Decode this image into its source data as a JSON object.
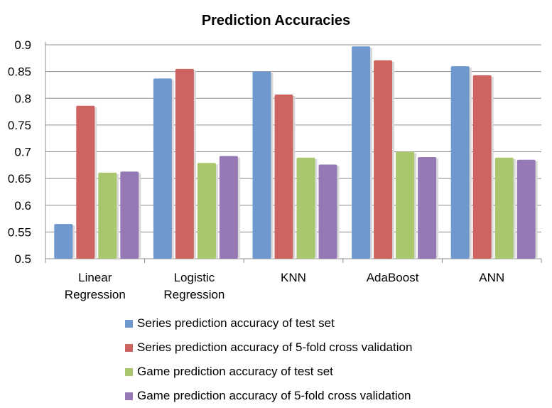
{
  "chart_data": {
    "type": "bar",
    "title": "Prediction Accuracies",
    "categories": [
      [
        "Linear",
        "Regression"
      ],
      [
        "Logistic",
        "Regression"
      ],
      [
        "KNN"
      ],
      [
        "AdaBoost"
      ],
      [
        "ANN"
      ]
    ],
    "yticks": [
      "0.5",
      "0.55",
      "0.6",
      "0.65",
      "0.7",
      "0.75",
      "0.8",
      "0.85",
      "0.9"
    ],
    "ylim": [
      0.5,
      0.9
    ],
    "grid": true,
    "legend_position": "bottom",
    "series": [
      {
        "name": "Series prediction accuracy of test set",
        "color": "#6f98cf",
        "values": [
          0.565,
          0.837,
          0.85,
          0.897,
          0.86
        ]
      },
      {
        "name": "Series prediction accuracy of 5-fold cross validation",
        "color": "#cd6460",
        "values": [
          0.786,
          0.855,
          0.807,
          0.871,
          0.843
        ]
      },
      {
        "name": "Game prediction accuracy of test set",
        "color": "#a9c76c",
        "values": [
          0.661,
          0.679,
          0.689,
          0.7,
          0.689
        ]
      },
      {
        "name": "Game prediction accuracy of 5-fold cross validation",
        "color": "#9479b4",
        "values": [
          0.663,
          0.692,
          0.676,
          0.69,
          0.685
        ]
      }
    ]
  }
}
